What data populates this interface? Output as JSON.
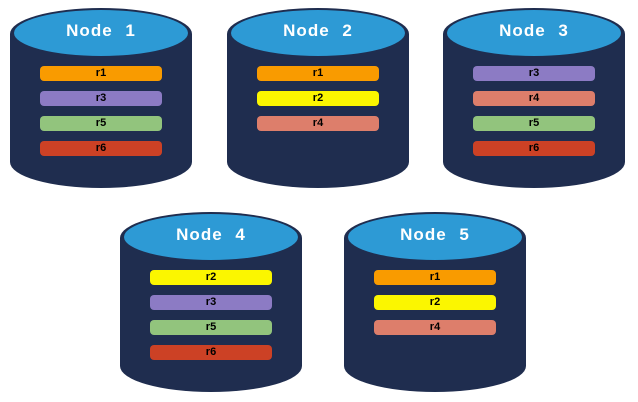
{
  "page": {
    "background": "#FFFFFF"
  },
  "colors": {
    "cylinder_body": "#1F2D4F",
    "cylinder_top": "#2D9AD5",
    "title_text": "#FFFFFF",
    "bar_text": "#000000"
  },
  "replica_colors": {
    "r1": "#F99B00",
    "r2": "#FBF600",
    "r3": "#8C7BC4",
    "r4": "#DD7E6B",
    "r5": "#92C47D",
    "r6": "#CC4125"
  },
  "nodes": [
    {
      "title": "Node 1",
      "replicas": [
        "r1",
        "r3",
        "r5",
        "r6"
      ]
    },
    {
      "title": "Node 2",
      "replicas": [
        "r1",
        "r2",
        "r4"
      ]
    },
    {
      "title": "Node 3",
      "replicas": [
        "r3",
        "r4",
        "r5",
        "r6"
      ]
    },
    {
      "title": "Node 4",
      "replicas": [
        "r2",
        "r3",
        "r5",
        "r6"
      ]
    },
    {
      "title": "Node 5",
      "replicas": [
        "r1",
        "r2",
        "r4"
      ]
    }
  ]
}
